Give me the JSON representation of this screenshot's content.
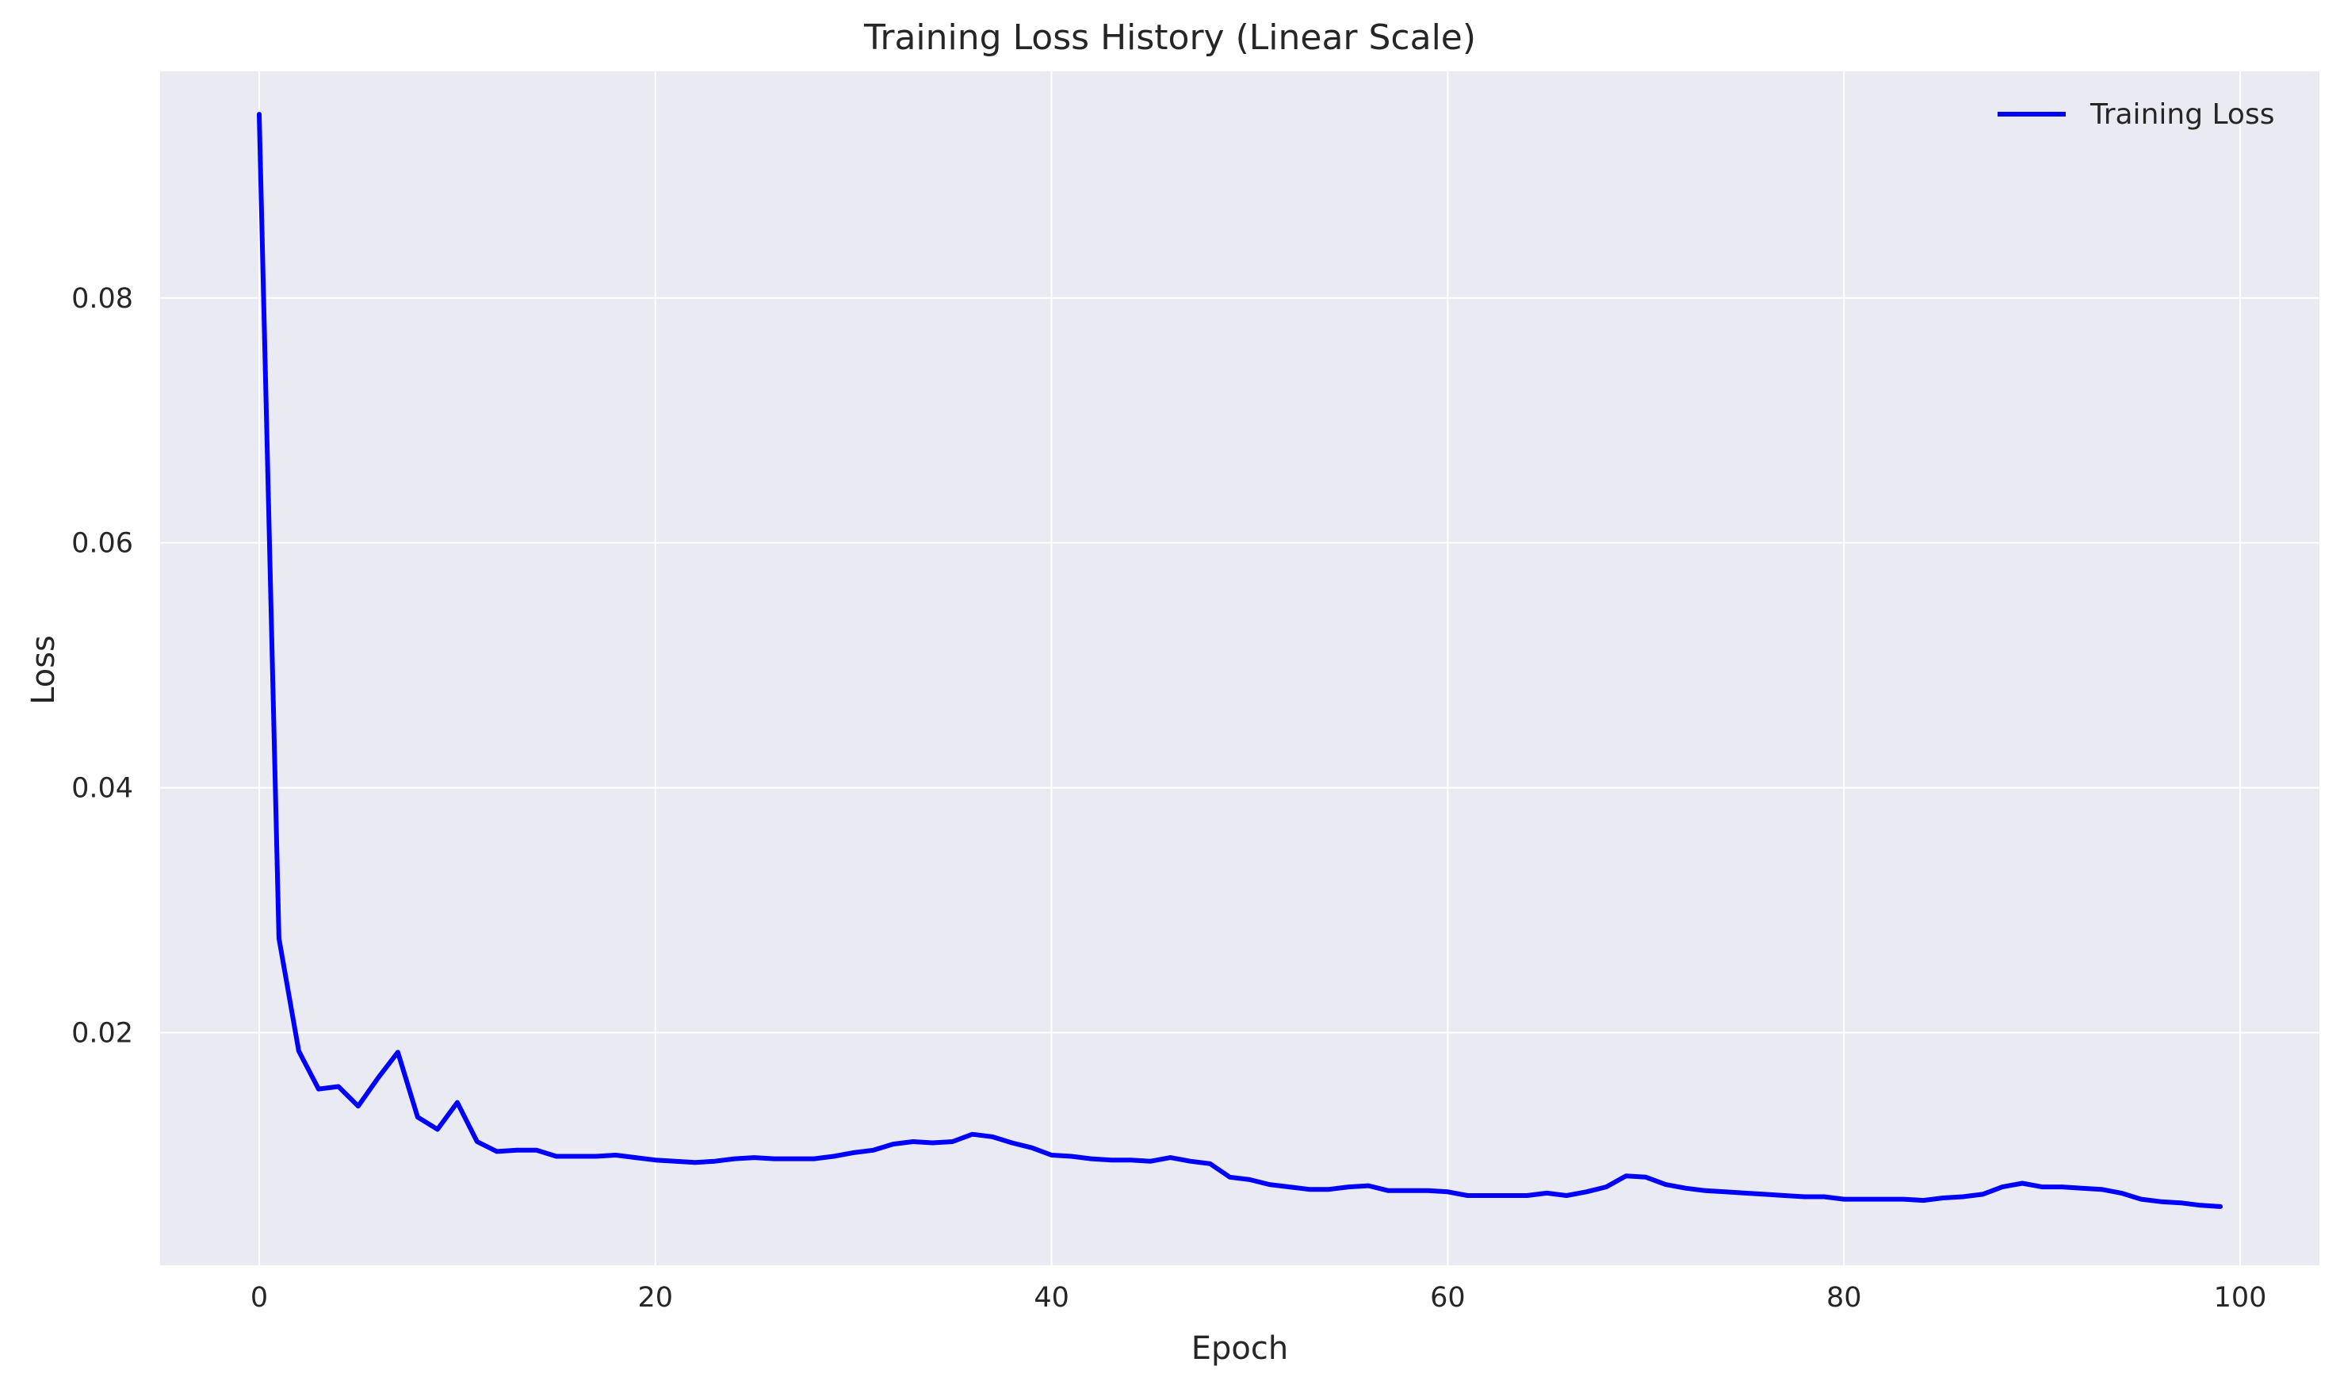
{
  "chart_data": {
    "type": "line",
    "title": "Training Loss History (Linear Scale)",
    "xlabel": "Epoch",
    "ylabel": "Loss",
    "xlim": [
      -5,
      104
    ],
    "ylim": [
      0.001,
      0.0985
    ],
    "xticks": [
      "0",
      "20",
      "40",
      "60",
      "80",
      "100"
    ],
    "yticks": [
      "0.02",
      "0.04",
      "0.06",
      "0.08"
    ],
    "grid": true,
    "legend_position": "top-right",
    "background_color": "#EAEAF2",
    "series": [
      {
        "name": "Training Loss",
        "color": "#0000FF",
        "x": [
          0,
          1,
          2,
          3,
          4,
          5,
          6,
          7,
          8,
          9,
          10,
          11,
          12,
          13,
          14,
          15,
          16,
          17,
          18,
          19,
          20,
          21,
          22,
          23,
          24,
          25,
          26,
          27,
          28,
          29,
          30,
          31,
          32,
          33,
          34,
          35,
          36,
          37,
          38,
          39,
          40,
          41,
          42,
          43,
          44,
          45,
          46,
          47,
          48,
          49,
          50,
          51,
          52,
          53,
          54,
          55,
          56,
          57,
          58,
          59,
          60,
          61,
          62,
          63,
          64,
          65,
          66,
          67,
          68,
          69,
          70,
          71,
          72,
          73,
          74,
          75,
          76,
          77,
          78,
          79,
          80,
          81,
          82,
          83,
          84,
          85,
          86,
          87,
          88,
          89,
          90,
          91,
          92,
          93,
          94,
          95,
          96,
          97,
          98,
          99
        ],
        "values": [
          0.095,
          0.0277,
          0.0185,
          0.0154,
          0.0156,
          0.014,
          0.0163,
          0.0184,
          0.0131,
          0.0121,
          0.0143,
          0.0111,
          0.0103,
          0.0104,
          0.0104,
          0.0099,
          0.0099,
          0.0099,
          0.01,
          0.0098,
          0.0096,
          0.0095,
          0.0094,
          0.0095,
          0.0097,
          0.0098,
          0.0097,
          0.0097,
          0.0097,
          0.0099,
          0.0102,
          0.0104,
          0.0109,
          0.0111,
          0.011,
          0.0111,
          0.0117,
          0.0115,
          0.011,
          0.0106,
          0.01,
          0.0099,
          0.0097,
          0.0096,
          0.0096,
          0.0095,
          0.0098,
          0.0095,
          0.0093,
          0.0082,
          0.008,
          0.0076,
          0.0074,
          0.0072,
          0.0072,
          0.0074,
          0.0075,
          0.0071,
          0.0071,
          0.0071,
          0.007,
          0.0067,
          0.0067,
          0.0067,
          0.0067,
          0.0069,
          0.0067,
          0.007,
          0.0074,
          0.0083,
          0.0082,
          0.0076,
          0.0073,
          0.0071,
          0.007,
          0.0069,
          0.0068,
          0.0067,
          0.0066,
          0.0066,
          0.0064,
          0.0064,
          0.0064,
          0.0064,
          0.0063,
          0.0065,
          0.0066,
          0.0068,
          0.0074,
          0.0077,
          0.0074,
          0.0074,
          0.0073,
          0.0072,
          0.0069,
          0.0064,
          0.0062,
          0.0061,
          0.0059,
          0.0058
        ]
      }
    ]
  }
}
